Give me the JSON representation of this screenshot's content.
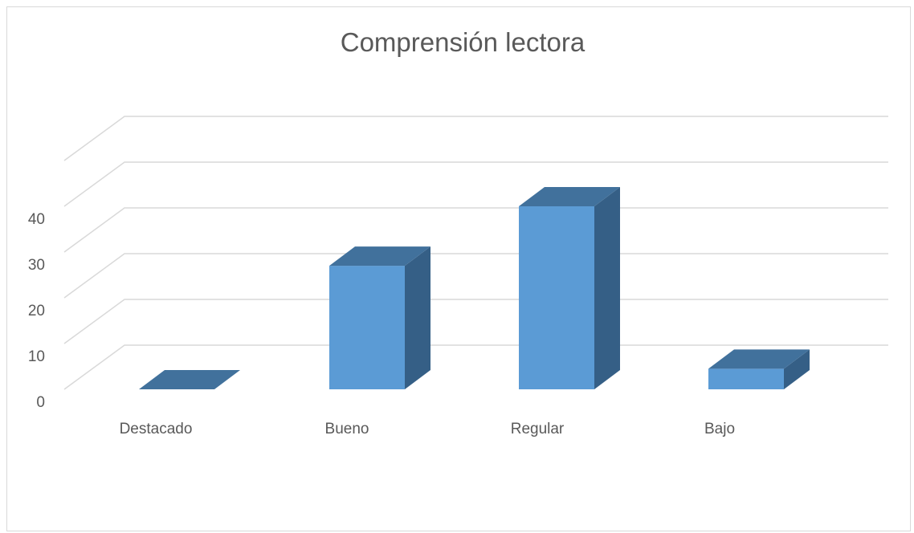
{
  "chart_data": {
    "type": "bar",
    "title": "Comprensión lectora",
    "categories": [
      "Destacado",
      "Bueno",
      "Regular",
      "Bajo"
    ],
    "values": [
      0,
      27,
      40,
      4.5
    ],
    "ylim": [
      0,
      50
    ],
    "yticks": [
      0,
      10,
      20,
      30,
      40
    ],
    "xlabel": "",
    "ylabel": "",
    "grid": true,
    "three_d": true,
    "legend": "none",
    "colors": {
      "bar_front": "#5b9bd5",
      "bar_top": "#41719c",
      "bar_side": "#355f86",
      "grid": "#d9d9d9",
      "text": "#595959",
      "border": "#d9d9d9"
    }
  }
}
